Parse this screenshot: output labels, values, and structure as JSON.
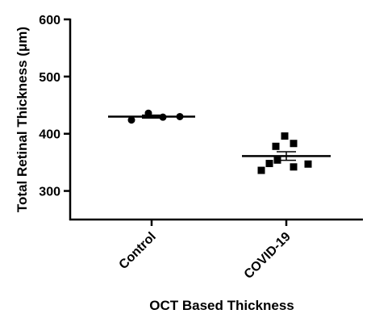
{
  "chart_data": {
    "type": "scatter",
    "title": "",
    "xlabel": "OCT Based Thickness",
    "ylabel": "Total Retinal Thickness (μm)",
    "ylim": [
      250,
      600
    ],
    "yticks": [
      300,
      400,
      500,
      600
    ],
    "categories": [
      "Control",
      "COVID-19"
    ],
    "grid": false,
    "legend": "none",
    "series": [
      {
        "category": "Control",
        "marker": "circle",
        "points": [
          424,
          436,
          429,
          430
        ],
        "mean": 430,
        "sem": 2.5
      },
      {
        "category": "COVID-19",
        "marker": "square",
        "points": [
          336,
          348,
          354,
          378,
          396,
          383,
          342,
          347
        ],
        "mean": 361,
        "sem": 7.5
      }
    ],
    "colors": {
      "marker": "#000000",
      "axis": "#000000"
    }
  }
}
